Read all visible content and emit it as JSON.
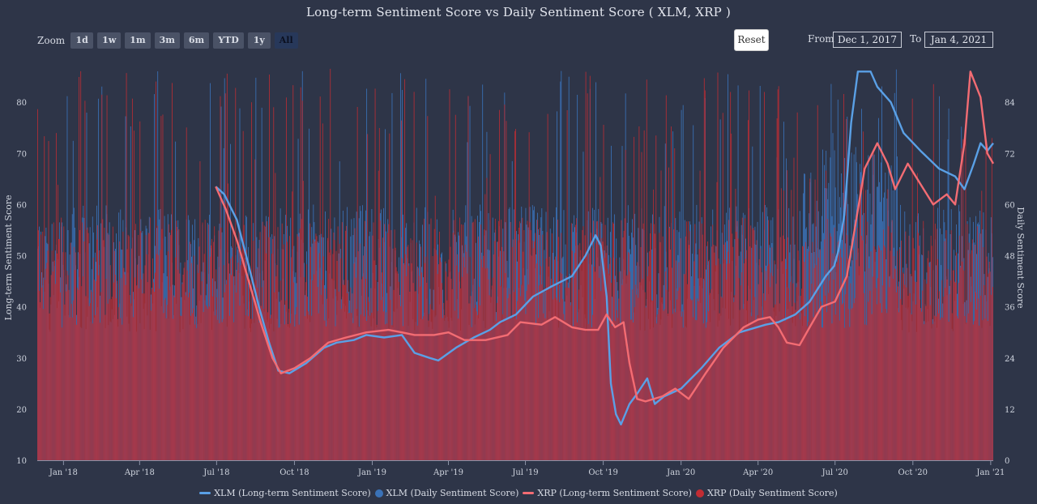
{
  "toolbar": {
    "zoom_label": "Zoom",
    "zoom_buttons": [
      "1d",
      "1w",
      "1m",
      "3m",
      "6m",
      "YTD",
      "1y",
      "All"
    ],
    "active_zoom": "All",
    "reset_label": "Reset",
    "from_label": "From",
    "from_value": "Dec 1, 2017",
    "to_label": "To",
    "to_value": "Jan 4, 2021"
  },
  "colors": {
    "background": "#2e3548",
    "xlm": "#5aa0e6",
    "xlm_bars": "#3a72b8",
    "xrp": "#f36c73",
    "xrp_bars": "#c22c33"
  },
  "chart_data": {
    "type": "line",
    "title": "Long-term Sentiment Score vs Daily Sentiment Score ( XLM, XRP )",
    "xlabel": "",
    "ylabel": "Long-term Sentiment Score",
    "y2label": "Daily Sentiment Score",
    "xlim": [
      "2017-12-01",
      "2021-01-04"
    ],
    "ylim": [
      10,
      87
    ],
    "y2lim": [
      0,
      92.4
    ],
    "yticks": [
      10,
      20,
      30,
      40,
      50,
      60,
      70,
      80
    ],
    "y2ticks": [
      0,
      12,
      24,
      36,
      48,
      60,
      72,
      84
    ],
    "xticks": [
      {
        "date": "2018-01-01",
        "label": "Jan '18"
      },
      {
        "date": "2018-04-01",
        "label": "Apr '18"
      },
      {
        "date": "2018-07-01",
        "label": "Jul '18"
      },
      {
        "date": "2018-10-01",
        "label": "Oct '18"
      },
      {
        "date": "2019-01-01",
        "label": "Jan '19"
      },
      {
        "date": "2019-04-01",
        "label": "Apr '19"
      },
      {
        "date": "2019-07-01",
        "label": "Jul '19"
      },
      {
        "date": "2019-10-01",
        "label": "Oct '19"
      },
      {
        "date": "2020-01-01",
        "label": "Jan '20"
      },
      {
        "date": "2020-04-01",
        "label": "Apr '20"
      },
      {
        "date": "2020-07-01",
        "label": "Jul '20"
      },
      {
        "date": "2020-10-01",
        "label": "Oct '20"
      },
      {
        "date": "2021-01-01",
        "label": "Jan '21"
      }
    ],
    "legend_position": "bottom",
    "grid": false,
    "series": [
      {
        "name": "XLM (Long-term Sentiment Score)",
        "type": "line",
        "axis": "left",
        "points": [
          [
            "2018-06-30",
            63.5
          ],
          [
            "2018-07-10",
            62
          ],
          [
            "2018-07-25",
            57
          ],
          [
            "2018-08-08",
            48
          ],
          [
            "2018-08-20",
            40
          ],
          [
            "2018-09-01",
            33
          ],
          [
            "2018-09-12",
            27.5
          ],
          [
            "2018-09-25",
            27
          ],
          [
            "2018-10-15",
            29
          ],
          [
            "2018-11-05",
            32
          ],
          [
            "2018-11-20",
            33
          ],
          [
            "2018-12-10",
            33.5
          ],
          [
            "2018-12-25",
            34.5
          ],
          [
            "2019-01-15",
            34
          ],
          [
            "2019-02-05",
            34.5
          ],
          [
            "2019-02-20",
            31
          ],
          [
            "2019-03-10",
            30
          ],
          [
            "2019-03-20",
            29.5
          ],
          [
            "2019-04-10",
            32
          ],
          [
            "2019-05-01",
            34
          ],
          [
            "2019-05-20",
            35.5
          ],
          [
            "2019-06-01",
            37
          ],
          [
            "2019-06-20",
            38.5
          ],
          [
            "2019-07-10",
            42
          ],
          [
            "2019-08-01",
            44
          ],
          [
            "2019-08-25",
            46
          ],
          [
            "2019-09-10",
            50
          ],
          [
            "2019-09-22",
            54
          ],
          [
            "2019-09-28",
            52
          ],
          [
            "2019-10-05",
            42
          ],
          [
            "2019-10-10",
            25
          ],
          [
            "2019-10-16",
            19
          ],
          [
            "2019-10-22",
            17
          ],
          [
            "2019-11-01",
            21
          ],
          [
            "2019-11-10",
            23
          ],
          [
            "2019-11-22",
            26
          ],
          [
            "2019-12-01",
            21
          ],
          [
            "2019-12-12",
            22.5
          ],
          [
            "2020-01-01",
            24
          ],
          [
            "2020-01-25",
            28
          ],
          [
            "2020-02-15",
            32
          ],
          [
            "2020-03-10",
            35
          ],
          [
            "2020-04-10",
            36.5
          ],
          [
            "2020-04-25",
            37
          ],
          [
            "2020-05-15",
            38.5
          ],
          [
            "2020-06-01",
            41
          ],
          [
            "2020-06-20",
            46
          ],
          [
            "2020-06-30",
            48
          ],
          [
            "2020-07-05",
            51
          ],
          [
            "2020-07-12",
            58
          ],
          [
            "2020-07-20",
            76
          ],
          [
            "2020-07-28",
            86
          ],
          [
            "2020-08-12",
            86
          ],
          [
            "2020-08-20",
            83
          ],
          [
            "2020-09-05",
            80
          ],
          [
            "2020-09-20",
            74
          ],
          [
            "2020-10-10",
            70.5
          ],
          [
            "2020-11-01",
            67
          ],
          [
            "2020-11-20",
            65.5
          ],
          [
            "2020-12-01",
            63
          ],
          [
            "2020-12-12",
            68
          ],
          [
            "2020-12-20",
            72
          ],
          [
            "2020-12-28",
            70.5
          ],
          [
            "2021-01-04",
            72
          ]
        ]
      },
      {
        "name": "XLM (Daily Sentiment Score)",
        "type": "column",
        "axis": "right",
        "summary": "daily values, mostly 30-75 with spikes near 92; higher in mid-2020",
        "range": [
          15,
          92
        ]
      },
      {
        "name": "XRP (Long-term Sentiment Score)",
        "type": "line",
        "axis": "left",
        "points": [
          [
            "2018-06-30",
            63.5
          ],
          [
            "2018-07-12",
            59
          ],
          [
            "2018-07-25",
            53
          ],
          [
            "2018-08-08",
            45
          ],
          [
            "2018-08-22",
            37
          ],
          [
            "2018-09-05",
            30
          ],
          [
            "2018-09-15",
            27
          ],
          [
            "2018-10-01",
            28
          ],
          [
            "2018-10-20",
            30
          ],
          [
            "2018-11-10",
            33
          ],
          [
            "2018-12-01",
            34
          ],
          [
            "2018-12-25",
            35
          ],
          [
            "2019-01-20",
            35.5
          ],
          [
            "2019-02-05",
            35
          ],
          [
            "2019-02-20",
            34.5
          ],
          [
            "2019-03-15",
            34.5
          ],
          [
            "2019-04-01",
            35
          ],
          [
            "2019-04-20",
            33.5
          ],
          [
            "2019-05-15",
            33.5
          ],
          [
            "2019-06-10",
            34.5
          ],
          [
            "2019-06-25",
            37
          ],
          [
            "2019-07-20",
            36.5
          ],
          [
            "2019-08-05",
            38
          ],
          [
            "2019-08-25",
            36
          ],
          [
            "2019-09-10",
            35.5
          ],
          [
            "2019-09-25",
            35.5
          ],
          [
            "2019-10-05",
            38.5
          ],
          [
            "2019-10-15",
            36
          ],
          [
            "2019-10-25",
            37
          ],
          [
            "2019-11-01",
            29
          ],
          [
            "2019-11-10",
            22
          ],
          [
            "2019-11-20",
            21.5
          ],
          [
            "2019-12-10",
            22.5
          ],
          [
            "2019-12-25",
            24
          ],
          [
            "2020-01-10",
            22
          ],
          [
            "2020-01-30",
            27
          ],
          [
            "2020-02-20",
            32
          ],
          [
            "2020-03-15",
            36
          ],
          [
            "2020-04-01",
            37.5
          ],
          [
            "2020-04-15",
            38
          ],
          [
            "2020-04-25",
            36
          ],
          [
            "2020-05-05",
            33
          ],
          [
            "2020-05-20",
            32.5
          ],
          [
            "2020-06-01",
            36
          ],
          [
            "2020-06-15",
            40
          ],
          [
            "2020-07-01",
            41
          ],
          [
            "2020-07-15",
            46
          ],
          [
            "2020-07-25",
            56
          ],
          [
            "2020-08-05",
            67
          ],
          [
            "2020-08-20",
            72
          ],
          [
            "2020-09-01",
            68
          ],
          [
            "2020-09-10",
            63
          ],
          [
            "2020-09-25",
            68
          ],
          [
            "2020-10-10",
            64
          ],
          [
            "2020-10-25",
            60
          ],
          [
            "2020-11-10",
            62
          ],
          [
            "2020-11-20",
            60
          ],
          [
            "2020-12-01",
            72
          ],
          [
            "2020-12-08",
            86
          ],
          [
            "2020-12-20",
            81
          ],
          [
            "2020-12-28",
            70
          ],
          [
            "2021-01-04",
            68
          ]
        ]
      },
      {
        "name": "XRP (Daily Sentiment Score)",
        "type": "column",
        "axis": "right",
        "summary": "daily values, mostly 30-70 with frequent spikes up to ~92",
        "range": [
          10,
          92
        ]
      }
    ]
  }
}
